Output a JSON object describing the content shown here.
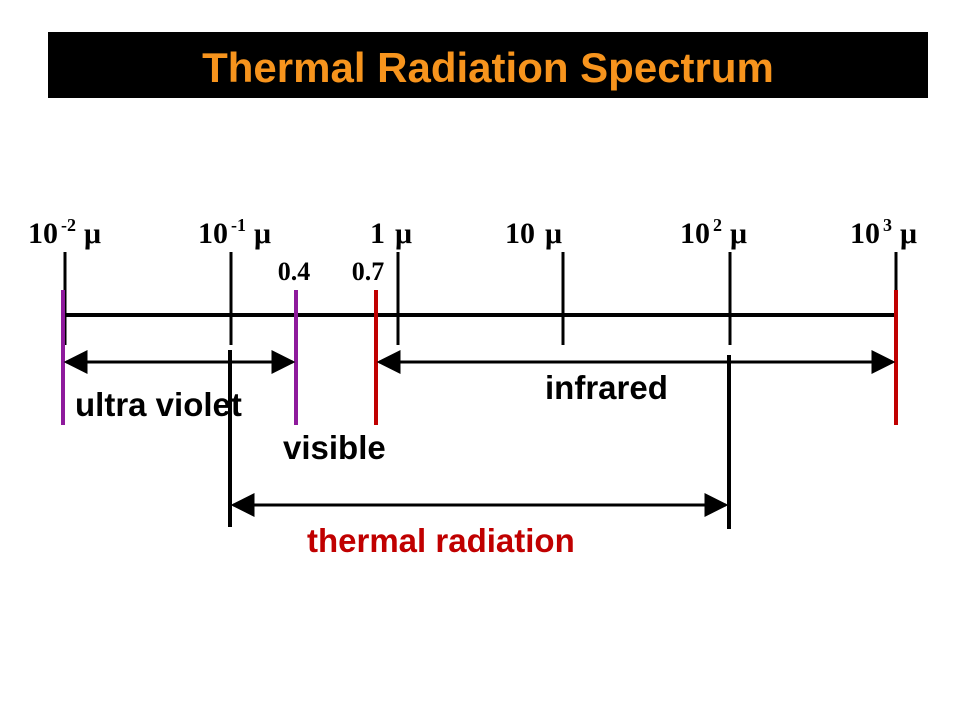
{
  "title": "Thermal Radiation Spectrum",
  "scale": [
    {
      "base": "10",
      "exponent": "-2",
      "unit": "μ"
    },
    {
      "base": "10",
      "exponent": "-1",
      "unit": "μ"
    },
    {
      "base": "1",
      "unit": "μ"
    },
    {
      "base": "10",
      "unit": "μ"
    },
    {
      "base": "10",
      "exponent": "2",
      "unit": "μ"
    },
    {
      "base": "10",
      "exponent": "3",
      "unit": "μ"
    }
  ],
  "markers": [
    "0.4",
    "0.7"
  ],
  "regions": {
    "ultraviolet": "ultra violet",
    "visible": "visible",
    "infrared": "infrared",
    "thermal": "thermal radiation"
  }
}
